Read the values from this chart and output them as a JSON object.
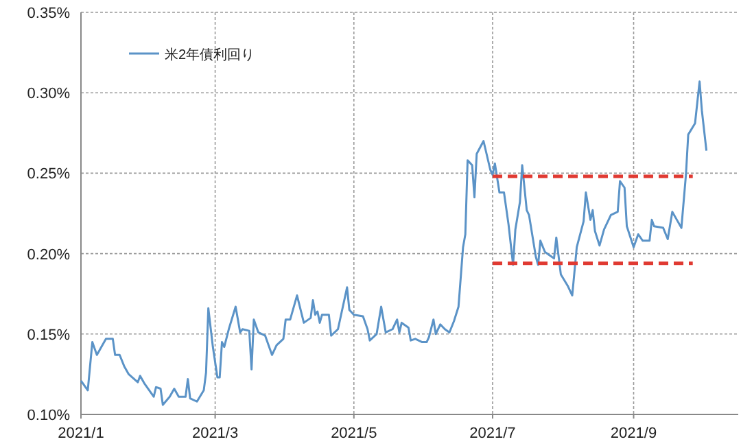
{
  "chart_data": {
    "type": "line",
    "xlim": [
      "2021-01-01",
      "2021-10-17"
    ],
    "ylim": [
      0.1,
      0.35
    ],
    "xticks": [
      {
        "value": "2021-01-01",
        "label": "2021/1"
      },
      {
        "value": "2021-03-01",
        "label": "2021/3"
      },
      {
        "value": "2021-05-01",
        "label": "2021/5"
      },
      {
        "value": "2021-07-01",
        "label": "2021/7"
      },
      {
        "value": "2021-09-01",
        "label": "2021/9"
      }
    ],
    "yticks": [
      {
        "value": 0.1,
        "label": "0.10%"
      },
      {
        "value": 0.15,
        "label": "0.15%"
      },
      {
        "value": 0.2,
        "label": "0.20%"
      },
      {
        "value": 0.25,
        "label": "0.25%"
      },
      {
        "value": 0.3,
        "label": "0.30%"
      },
      {
        "value": 0.35,
        "label": "0.35%"
      }
    ],
    "grid": true,
    "legend": "top left",
    "series": [
      {
        "name": "米2年債利回り",
        "color": "#5b93c7",
        "line_style": "solid",
        "x": [
          "2021-01-01",
          "2021-01-04",
          "2021-01-06",
          "2021-01-08",
          "2021-01-12",
          "2021-01-15",
          "2021-01-16",
          "2021-01-18",
          "2021-01-20",
          "2021-01-22",
          "2021-01-26",
          "2021-01-27",
          "2021-01-29",
          "2021-02-02",
          "2021-02-03",
          "2021-02-05",
          "2021-02-06",
          "2021-02-09",
          "2021-02-11",
          "2021-02-13",
          "2021-02-16",
          "2021-02-17",
          "2021-02-18",
          "2021-02-21",
          "2021-02-24",
          "2021-02-25",
          "2021-02-26",
          "2021-02-28",
          "2021-03-02",
          "2021-03-03",
          "2021-03-04",
          "2021-03-05",
          "2021-03-07",
          "2021-03-10",
          "2021-03-12",
          "2021-03-13",
          "2021-03-16",
          "2021-03-17",
          "2021-03-18",
          "2021-03-20",
          "2021-03-23",
          "2021-03-26",
          "2021-03-28",
          "2021-03-31",
          "2021-04-01",
          "2021-04-03",
          "2021-04-06",
          "2021-04-09",
          "2021-04-12",
          "2021-04-13",
          "2021-04-14",
          "2021-04-15",
          "2021-04-16",
          "2021-04-17",
          "2021-04-20",
          "2021-04-21",
          "2021-04-24",
          "2021-04-28",
          "2021-04-29",
          "2021-05-01",
          "2021-05-05",
          "2021-05-07",
          "2021-05-08",
          "2021-05-11",
          "2021-05-13",
          "2021-05-15",
          "2021-05-18",
          "2021-05-20",
          "2021-05-21",
          "2021-05-22",
          "2021-05-25",
          "2021-05-26",
          "2021-05-28",
          "2021-05-31",
          "2021-06-02",
          "2021-06-03",
          "2021-06-05",
          "2021-06-06",
          "2021-06-08",
          "2021-06-10",
          "2021-06-12",
          "2021-06-14",
          "2021-06-16",
          "2021-06-18",
          "2021-06-19",
          "2021-06-20",
          "2021-06-22",
          "2021-06-23",
          "2021-06-24",
          "2021-06-27",
          "2021-06-30",
          "2021-07-01",
          "2021-07-02",
          "2021-07-04",
          "2021-07-06",
          "2021-07-08",
          "2021-07-10",
          "2021-07-11",
          "2021-07-13",
          "2021-07-14",
          "2021-07-16",
          "2021-07-17",
          "2021-07-20",
          "2021-07-21",
          "2021-07-22",
          "2021-07-24",
          "2021-07-27",
          "2021-07-28",
          "2021-07-29",
          "2021-07-31",
          "2021-08-03",
          "2021-08-05",
          "2021-08-07",
          "2021-08-10",
          "2021-08-11",
          "2021-08-13",
          "2021-08-14",
          "2021-08-15",
          "2021-08-17",
          "2021-08-19",
          "2021-08-22",
          "2021-08-25",
          "2021-08-26",
          "2021-08-28",
          "2021-08-29",
          "2021-09-01",
          "2021-09-03",
          "2021-09-05",
          "2021-09-08",
          "2021-09-09",
          "2021-09-10",
          "2021-09-14",
          "2021-09-16",
          "2021-09-18",
          "2021-09-20",
          "2021-09-22",
          "2021-09-24",
          "2021-09-25",
          "2021-09-28",
          "2021-09-30",
          "2021-10-01",
          "2021-10-03"
        ],
        "values": [
          0.121,
          0.115,
          0.145,
          0.137,
          0.147,
          0.147,
          0.137,
          0.137,
          0.13,
          0.125,
          0.12,
          0.124,
          0.119,
          0.111,
          0.117,
          0.116,
          0.106,
          0.111,
          0.116,
          0.111,
          0.111,
          0.122,
          0.11,
          0.108,
          0.115,
          0.126,
          0.166,
          0.142,
          0.123,
          0.123,
          0.145,
          0.142,
          0.153,
          0.167,
          0.151,
          0.153,
          0.152,
          0.128,
          0.159,
          0.151,
          0.149,
          0.137,
          0.143,
          0.147,
          0.159,
          0.159,
          0.174,
          0.157,
          0.16,
          0.171,
          0.162,
          0.164,
          0.157,
          0.162,
          0.162,
          0.149,
          0.153,
          0.179,
          0.165,
          0.162,
          0.161,
          0.153,
          0.146,
          0.15,
          0.167,
          0.151,
          0.153,
          0.159,
          0.151,
          0.157,
          0.154,
          0.146,
          0.147,
          0.145,
          0.145,
          0.148,
          0.159,
          0.15,
          0.156,
          0.153,
          0.151,
          0.158,
          0.167,
          0.204,
          0.212,
          0.258,
          0.255,
          0.235,
          0.262,
          0.27,
          0.252,
          0.249,
          0.256,
          0.238,
          0.238,
          0.218,
          0.193,
          0.215,
          0.232,
          0.255,
          0.227,
          0.224,
          0.198,
          0.193,
          0.208,
          0.201,
          0.198,
          0.197,
          0.21,
          0.187,
          0.18,
          0.174,
          0.204,
          0.22,
          0.238,
          0.221,
          0.227,
          0.214,
          0.205,
          0.215,
          0.224,
          0.226,
          0.245,
          0.241,
          0.217,
          0.204,
          0.212,
          0.208,
          0.208,
          0.221,
          0.217,
          0.216,
          0.209,
          0.226,
          0.221,
          0.216,
          0.249,
          0.274,
          0.281,
          0.307,
          0.289,
          0.264
        ]
      },
      {
        "color": "#e03a32",
        "line_style": "dashed",
        "x": [
          "2021-07-01",
          "2021-09-27"
        ],
        "values": [
          0.248,
          0.248
        ]
      },
      {
        "color": "#e03a32",
        "line_style": "dashed",
        "x": [
          "2021-07-01",
          "2021-09-27"
        ],
        "values": [
          0.194,
          0.194
        ]
      }
    ]
  }
}
